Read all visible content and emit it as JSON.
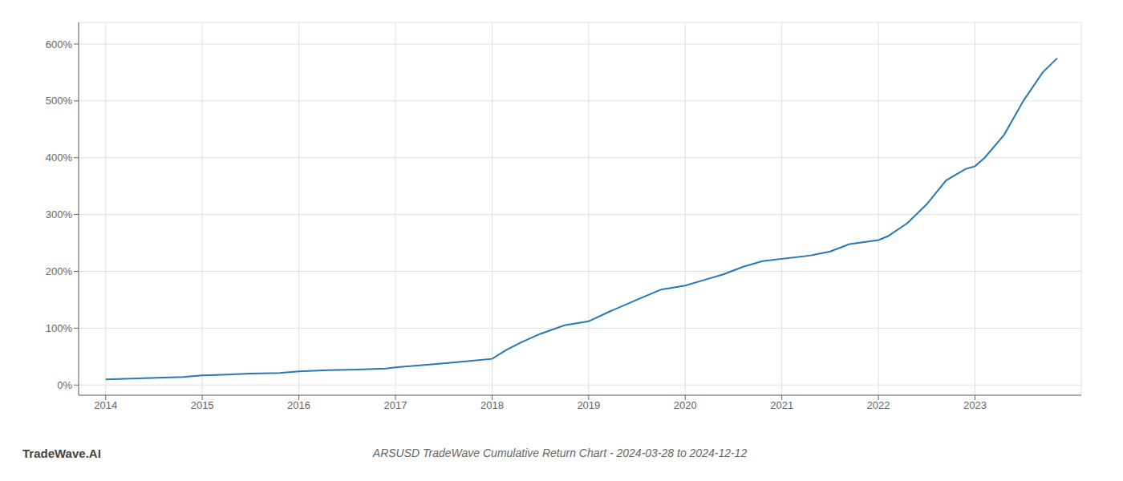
{
  "chart_data": {
    "type": "line",
    "title": "ARSUSD TradeWave Cumulative Return Chart - 2024-03-28 to 2024-12-12",
    "annotations": [
      "TradeWave.AI"
    ],
    "x": [
      2014.0,
      2014.2,
      2014.4,
      2014.6,
      2014.8,
      2015.0,
      2015.2,
      2015.5,
      2015.8,
      2016.0,
      2016.3,
      2016.6,
      2016.9,
      2017.0,
      2017.2,
      2017.5,
      2017.75,
      2018.0,
      2018.15,
      2018.3,
      2018.5,
      2018.75,
      2019.0,
      2019.2,
      2019.5,
      2019.75,
      2020.0,
      2020.2,
      2020.4,
      2020.6,
      2020.8,
      2021.0,
      2021.1,
      2021.3,
      2021.5,
      2021.7,
      2022.0,
      2022.1,
      2022.3,
      2022.5,
      2022.7,
      2022.9,
      2023.0,
      2023.1,
      2023.3,
      2023.5,
      2023.7,
      2023.85
    ],
    "values": [
      10,
      11,
      12,
      13,
      14,
      17,
      18,
      20,
      21,
      24,
      26,
      27,
      29,
      31,
      34,
      38,
      42,
      46,
      62,
      75,
      90,
      105,
      112,
      128,
      150,
      168,
      175,
      185,
      195,
      208,
      218,
      222,
      224,
      228,
      235,
      248,
      255,
      262,
      285,
      318,
      360,
      380,
      385,
      400,
      440,
      500,
      550,
      575
    ],
    "color": "#2878b5",
    "xlim": [
      2013.72,
      2024.1
    ],
    "ylim": [
      -18,
      638
    ],
    "xticks": [
      2014,
      2015,
      2016,
      2017,
      2018,
      2019,
      2020,
      2021,
      2022,
      2023
    ],
    "yticks": [
      {
        "value": 0,
        "label": "0%"
      },
      {
        "value": 100,
        "label": "100%"
      },
      {
        "value": 200,
        "label": "200%"
      },
      {
        "value": 300,
        "label": "300%"
      },
      {
        "value": 400,
        "label": "400%"
      },
      {
        "value": 500,
        "label": "500%"
      },
      {
        "value": 600,
        "label": "600%"
      }
    ],
    "grid": true
  }
}
